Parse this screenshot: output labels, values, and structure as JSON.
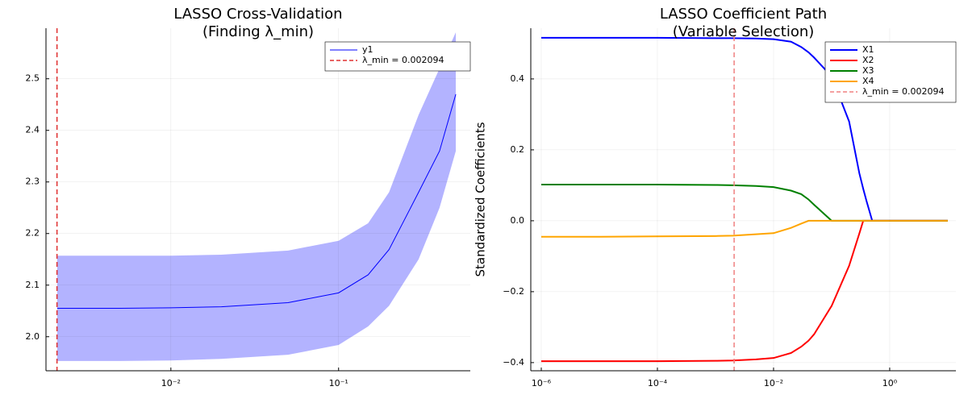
{
  "chart_data": [
    {
      "type": "line",
      "title": [
        "LASSO Cross-Validation",
        "(Finding λ_min)"
      ],
      "x": [
        0.0021,
        0.005,
        0.01,
        0.02,
        0.05,
        0.1,
        0.15,
        0.2,
        0.3,
        0.4,
        0.5
      ],
      "series": [
        {
          "name": "y1",
          "color": "#0000ff",
          "values": [
            2.055,
            2.055,
            2.056,
            2.058,
            2.066,
            2.085,
            2.12,
            2.169,
            2.28,
            2.36,
            2.47
          ],
          "upper": [
            2.157,
            2.157,
            2.157,
            2.159,
            2.167,
            2.186,
            2.22,
            2.28,
            2.43,
            2.52,
            2.59
          ],
          "lower": [
            1.953,
            1.953,
            1.954,
            1.957,
            1.965,
            1.984,
            2.02,
            2.06,
            2.15,
            2.25,
            2.36
          ],
          "band_color": "#b3b3ff"
        }
      ],
      "vlines": [
        {
          "name": "λ_min = 0.002094",
          "x": 0.002094,
          "color": "#e03030"
        }
      ],
      "xscale": "log",
      "xlim": [
        0.0018,
        0.61
      ],
      "xticks": [
        {
          "value": 0.01,
          "label": "10⁻²"
        },
        {
          "value": 0.1,
          "label": "10⁻¹"
        }
      ],
      "ylim": [
        1.934,
        2.598
      ],
      "yticks": [
        {
          "value": 2,
          "label": "2.0"
        },
        2.1,
        2.2,
        2.3,
        2.4,
        2.5
      ],
      "grid": true,
      "legend": "top right",
      "line_width": 1
    },
    {
      "type": "line",
      "title": [
        "LASSO Coefficient Path",
        "(Variable Selection)"
      ],
      "ylabel": "Standardized Coefficients",
      "x": [
        1e-06,
        1e-05,
        0.0001,
        0.001,
        0.002,
        0.005,
        0.01,
        0.02,
        0.03,
        0.04,
        0.05,
        0.1,
        0.2,
        0.3,
        0.35,
        0.4,
        0.5,
        1,
        10
      ],
      "series": [
        {
          "name": "X1",
          "color": "#0000ff",
          "values": [
            0.516,
            0.516,
            0.516,
            0.515,
            0.515,
            0.514,
            0.512,
            0.505,
            0.49,
            0.475,
            0.46,
            0.407,
            0.28,
            0.134,
            0.09,
            0.055,
            0,
            0,
            0
          ]
        },
        {
          "name": "X2",
          "color": "#ff0000",
          "values": [
            -0.396,
            -0.396,
            -0.396,
            -0.395,
            -0.394,
            -0.391,
            -0.387,
            -0.373,
            -0.355,
            -0.338,
            -0.32,
            -0.24,
            -0.127,
            -0.036,
            0,
            0,
            0,
            0,
            0
          ]
        },
        {
          "name": "X3",
          "color": "#008000",
          "values": [
            0.102,
            0.102,
            0.102,
            0.101,
            0.1,
            0.098,
            0.095,
            0.085,
            0.075,
            0.06,
            0.045,
            0,
            0,
            0,
            0,
            0,
            0,
            0,
            0
          ]
        },
        {
          "name": "X4",
          "color": "#ffa500",
          "values": [
            -0.045,
            -0.045,
            -0.044,
            -0.043,
            -0.042,
            -0.038,
            -0.035,
            -0.02,
            -0.008,
            0,
            0,
            0,
            0,
            0,
            0,
            0,
            0,
            0,
            0
          ]
        }
      ],
      "vlines": [
        {
          "name": "λ_min = 0.002094",
          "x": 0.002094,
          "color": "#f08080"
        }
      ],
      "xscale": "log",
      "xlim": [
        6.6e-07,
        13.8
      ],
      "xticks": [
        {
          "value": 1e-06,
          "label": "10⁻⁶"
        },
        {
          "value": 0.0001,
          "label": "10⁻⁴"
        },
        {
          "value": 0.01,
          "label": "10⁻²"
        },
        {
          "value": 1,
          "label": "10⁰"
        }
      ],
      "ylim": [
        -0.423,
        0.543
      ],
      "yticks": [
        {
          "value": -0.4,
          "label": "−0.4"
        },
        {
          "value": -0.2,
          "label": "−0.2"
        },
        {
          "value": 0,
          "label": "0.0"
        },
        0.2,
        0.4
      ],
      "grid": true,
      "legend": "top right",
      "line_width": 2
    }
  ]
}
